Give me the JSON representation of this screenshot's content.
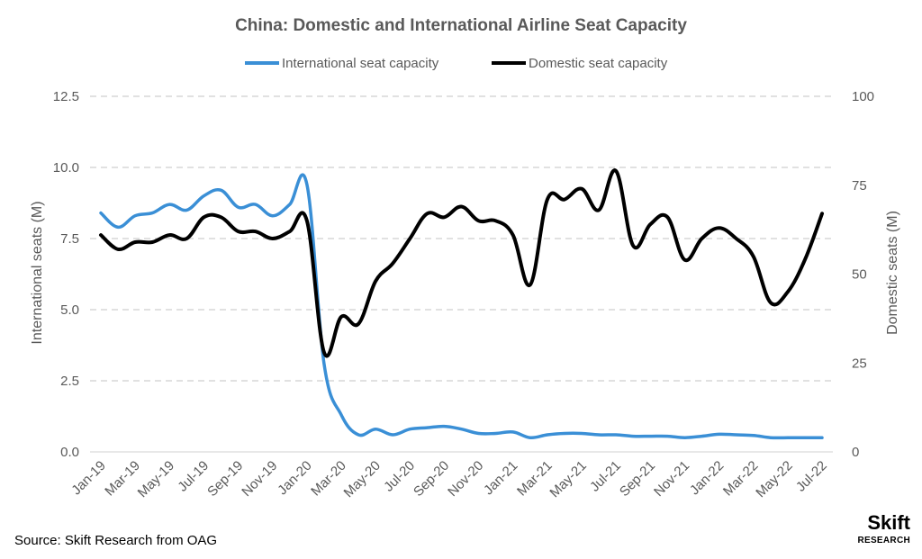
{
  "chart_data": {
    "type": "line",
    "title": "China: Domestic and International Airline Seat Capacity",
    "ylabel_left": "International seats (M)",
    "ylabel_right": "Domestic seats (M)",
    "ylim_left": [
      0,
      12.5
    ],
    "ylim_right": [
      0,
      100
    ],
    "yticks_left": [
      "0.0",
      "2.5",
      "5.0",
      "7.5",
      "10.0",
      "12.5"
    ],
    "yticks_right": [
      "0",
      "25",
      "50",
      "75",
      "100"
    ],
    "grid": "horizontal-dashed",
    "legend_position": "top",
    "x": [
      "Jan-19",
      "Feb-19",
      "Mar-19",
      "Apr-19",
      "May-19",
      "Jun-19",
      "Jul-19",
      "Aug-19",
      "Sep-19",
      "Oct-19",
      "Nov-19",
      "Dec-19",
      "Jan-20",
      "Feb-20",
      "Mar-20",
      "Apr-20",
      "May-20",
      "Jun-20",
      "Jul-20",
      "Aug-20",
      "Sep-20",
      "Oct-20",
      "Nov-20",
      "Dec-20",
      "Jan-21",
      "Feb-21",
      "Mar-21",
      "Apr-21",
      "May-21",
      "Jun-21",
      "Jul-21",
      "Aug-21",
      "Sep-21",
      "Oct-21",
      "Nov-21",
      "Dec-21",
      "Jan-22",
      "Feb-22",
      "Mar-22",
      "Apr-22",
      "May-22",
      "Jun-22",
      "Jul-22"
    ],
    "x_tick_labels": [
      "Jan-19",
      "Mar-19",
      "May-19",
      "Jul-19",
      "Sep-19",
      "Nov-19",
      "Jan-20",
      "Mar-20",
      "May-20",
      "Jul-20",
      "Sep-20",
      "Nov-20",
      "Jan-21",
      "Mar-21",
      "May-21",
      "Jul-21",
      "Sep-21",
      "Nov-21",
      "Jan-22",
      "Mar-22",
      "May-22",
      "Jul-22"
    ],
    "series": [
      {
        "name": "International seat capacity",
        "axis": "left",
        "color": "#3a8fd6",
        "values": [
          8.4,
          7.9,
          8.3,
          8.4,
          8.7,
          8.5,
          9.0,
          9.2,
          8.6,
          8.7,
          8.3,
          8.7,
          9.4,
          3.1,
          1.3,
          0.6,
          0.8,
          0.6,
          0.8,
          0.85,
          0.9,
          0.8,
          0.65,
          0.65,
          0.7,
          0.5,
          0.6,
          0.65,
          0.65,
          0.6,
          0.6,
          0.55,
          0.55,
          0.55,
          0.5,
          0.55,
          0.62,
          0.6,
          0.58,
          0.5,
          0.5,
          0.5,
          0.5
        ]
      },
      {
        "name": "Domestic seat capacity",
        "axis": "right",
        "color": "#000000",
        "values": [
          61,
          57,
          59,
          59,
          61,
          60,
          66,
          66,
          62,
          62,
          60,
          62,
          65,
          28,
          38,
          36,
          48,
          53,
          60,
          67,
          66,
          69,
          65,
          65,
          61,
          47,
          71,
          71,
          74,
          68,
          79,
          58,
          64,
          66,
          54,
          60,
          63,
          60,
          55,
          42,
          45,
          54,
          67
        ]
      }
    ]
  },
  "source": "Source: Skift Research from OAG",
  "logo": {
    "main": "Skift",
    "sub": "RESEARCH"
  }
}
